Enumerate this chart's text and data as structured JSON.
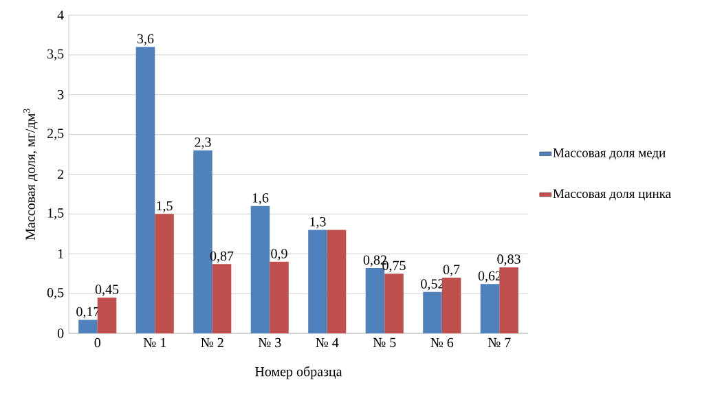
{
  "chart_data": {
    "type": "bar",
    "xlabel": "Номер образца",
    "ylabel": "Массовая доля, мг/дм$^{3}$",
    "categories": [
      "0",
      "№ 1",
      "№ 2",
      "№ 3",
      "№ 4",
      "№ 5",
      "№ 6",
      "№ 7"
    ],
    "series": [
      {
        "name": "Массовая доля меди",
        "color": "#4f81bd",
        "values": [
          0.17,
          3.6,
          2.3,
          1.6,
          1.3,
          0.82,
          0.52,
          0.62
        ],
        "value_labels": [
          "0,17",
          "3,6",
          "2,3",
          "1,6",
          "1,3",
          "0,82",
          "0,52",
          "0,62"
        ]
      },
      {
        "name": "Массовая доля цинка",
        "color": "#c0504d",
        "values": [
          0.45,
          1.5,
          0.87,
          0.9,
          1.3,
          0.75,
          0.7,
          0.83
        ],
        "value_labels": [
          "0,45",
          "1,5",
          "0,87",
          "0,9",
          null,
          "0,75",
          "0,7",
          "0,83"
        ]
      }
    ],
    "ylim": [
      0,
      4
    ],
    "yticks": [
      0,
      {
        "value": 0.5,
        "label": "0,5"
      },
      1,
      {
        "value": 1.5,
        "label": "1,5"
      },
      2,
      {
        "value": 2.5,
        "label": "2,5"
      },
      3,
      {
        "value": 3.5,
        "label": "3,5"
      },
      4
    ],
    "grid": "y",
    "legend": "right"
  }
}
